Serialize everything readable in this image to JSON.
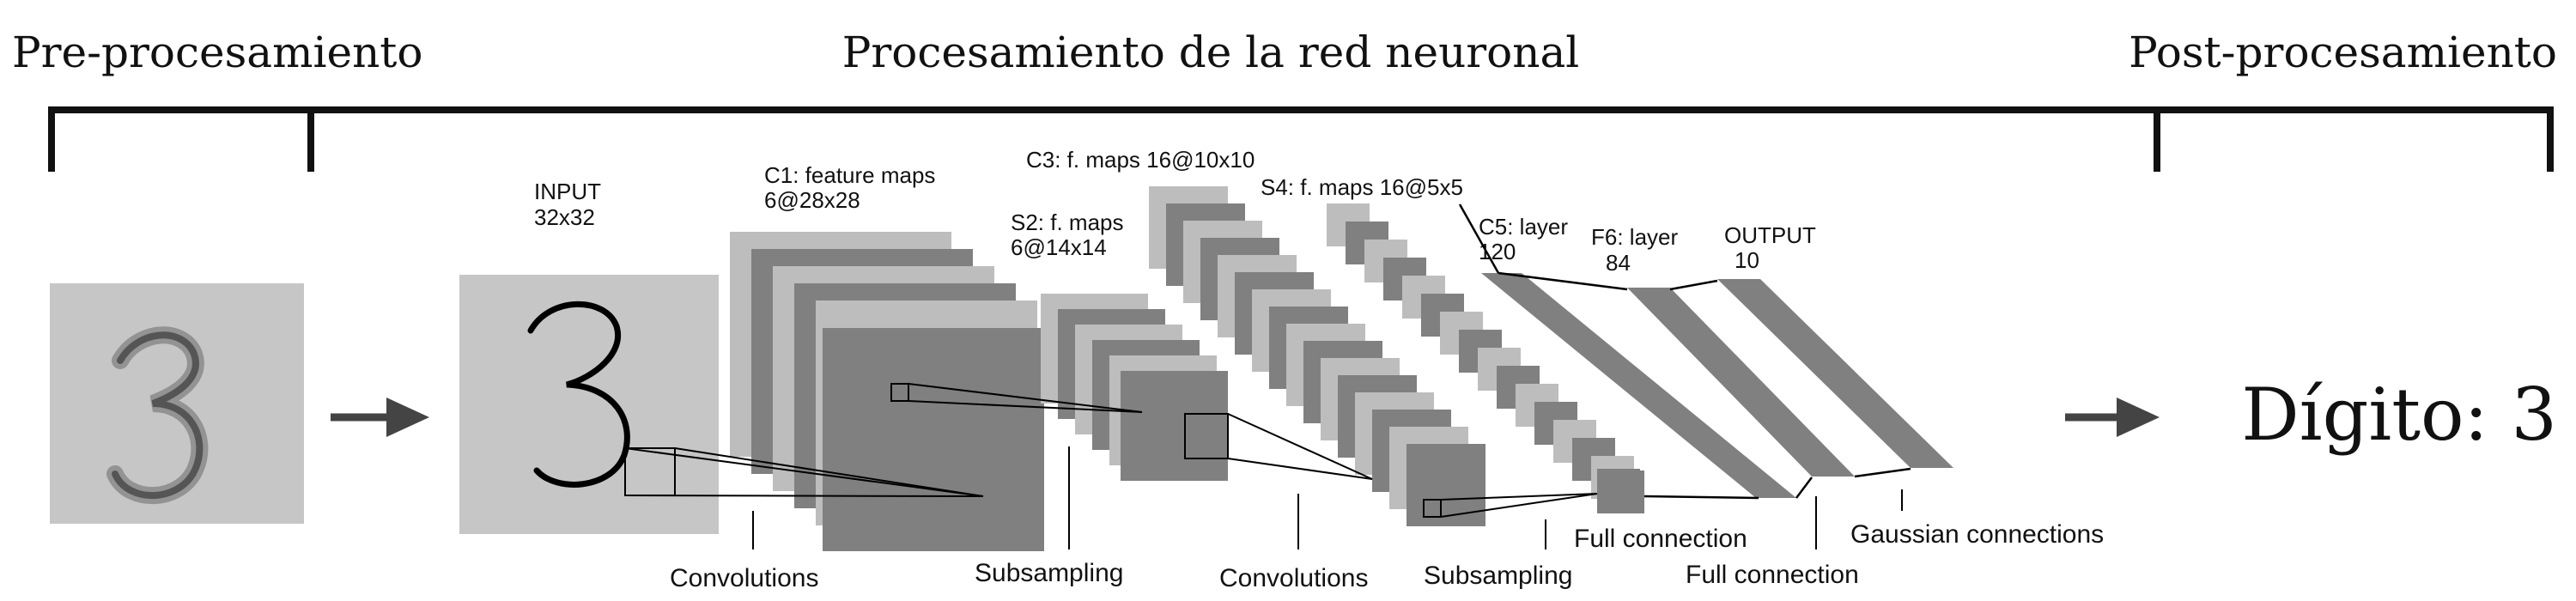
{
  "stages": {
    "pre": "Pre-procesamiento",
    "network": "Procesamiento de la red neuronal",
    "post": "Post-procesamiento"
  },
  "result": {
    "text": "Dígito: 3"
  },
  "layers": {
    "input": {
      "title": "INPUT",
      "size": "32x32"
    },
    "c1": {
      "title": "C1: feature maps",
      "size": "6@28x28"
    },
    "s2": {
      "title": "S2: f. maps",
      "size": "6@14x14"
    },
    "c3": {
      "title": "C3: f. maps 16@10x10"
    },
    "s4": {
      "title": "S4: f. maps 16@5x5"
    },
    "c5": {
      "title": "C5: layer",
      "size": "120"
    },
    "f6": {
      "title": "F6: layer",
      "size": "84"
    },
    "output": {
      "title": "OUTPUT",
      "size": "10"
    }
  },
  "operations": {
    "conv1": "Convolutions",
    "sub1": "Subsampling",
    "conv2": "Convolutions",
    "sub2": "Subsampling",
    "full1": "Full connection",
    "full2": "Full connection",
    "gauss": "Gaussian connections"
  },
  "colors": {
    "light_gray": "#c6c6c6",
    "mid_gray": "#bdbdbd",
    "dark_gray": "#808080",
    "ink": "#111111",
    "arrow": "#444444"
  },
  "icons": {
    "flow_arrow": "right-arrow-icon"
  }
}
